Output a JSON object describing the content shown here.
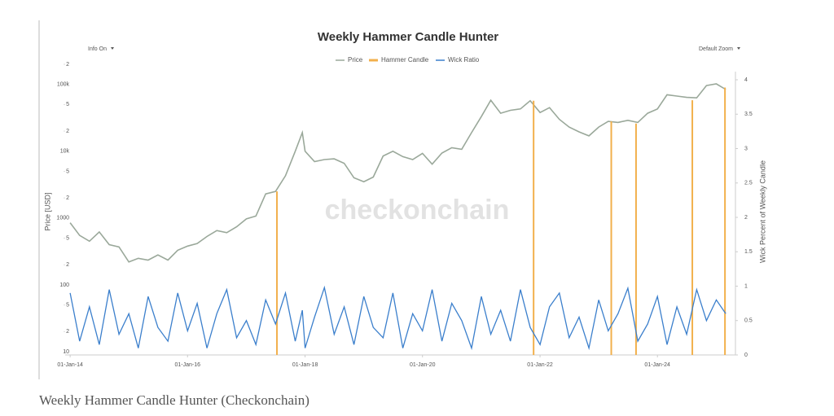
{
  "chart_data": {
    "type": "line",
    "title": "Weekly Hammer Candle Hunter",
    "caption": "Weekly Hammer Candle Hunter (Checkonchain)",
    "controls": [
      "Info On",
      "Default Zoom"
    ],
    "watermark": "checkonchain",
    "ylabel": "Price [USD]",
    "y2label": "Wick Percent of Weekly Candle",
    "log_y": true,
    "x": [
      "2014-01-01",
      "2014-03-01",
      "2014-05-01",
      "2014-07-01",
      "2014-09-01",
      "2014-11-01",
      "2015-01-01",
      "2015-03-01",
      "2015-05-01",
      "2015-07-01",
      "2015-09-01",
      "2015-11-01",
      "2016-01-01",
      "2016-03-01",
      "2016-05-01",
      "2016-07-01",
      "2016-09-01",
      "2016-11-01",
      "2017-01-01",
      "2017-03-01",
      "2017-05-01",
      "2017-07-01",
      "2017-09-01",
      "2017-11-01",
      "2017-12-15",
      "2018-01-01",
      "2018-03-01",
      "2018-05-01",
      "2018-07-01",
      "2018-09-01",
      "2018-11-01",
      "2019-01-01",
      "2019-03-01",
      "2019-05-01",
      "2019-07-01",
      "2019-09-01",
      "2019-11-01",
      "2020-01-01",
      "2020-03-01",
      "2020-05-01",
      "2020-07-01",
      "2020-09-01",
      "2020-11-01",
      "2021-01-01",
      "2021-03-01",
      "2021-05-01",
      "2021-07-01",
      "2021-09-01",
      "2021-11-01",
      "2022-01-01",
      "2022-03-01",
      "2022-05-01",
      "2022-07-01",
      "2022-09-01",
      "2022-11-01",
      "2023-01-01",
      "2023-03-01",
      "2023-05-01",
      "2023-07-01",
      "2023-09-01",
      "2023-11-01",
      "2024-01-01",
      "2024-03-01",
      "2024-05-01",
      "2024-07-01",
      "2024-09-01",
      "2024-11-01",
      "2025-01-01",
      "2025-03-01"
    ],
    "xlim": [
      "2013-12-01",
      "2025-04-15"
    ],
    "xticks": [
      {
        "value": "2014-01-01",
        "label": "01-Jan-14"
      },
      {
        "value": "2016-01-01",
        "label": "01-Jan-16"
      },
      {
        "value": "2018-01-01",
        "label": "01-Jan-18"
      },
      {
        "value": "2020-01-01",
        "label": "01-Jan-20"
      },
      {
        "value": "2022-01-01",
        "label": "01-Jan-22"
      },
      {
        "value": "2024-01-01",
        "label": "01-Jan-24"
      }
    ],
    "ylim": [
      10,
      230000
    ],
    "yticks": [
      10,
      {
        "value": 20,
        "label": "2"
      },
      {
        "value": 50,
        "label": "5"
      },
      100,
      {
        "value": 200,
        "label": "2"
      },
      {
        "value": 500,
        "label": "5"
      },
      1000,
      {
        "value": 2000,
        "label": "2"
      },
      {
        "value": 5000,
        "label": "5"
      },
      {
        "value": 10000,
        "label": "10k"
      },
      {
        "value": 20000,
        "label": "2"
      },
      {
        "value": 50000,
        "label": "5"
      },
      {
        "value": 100000,
        "label": "100k"
      },
      {
        "value": 200000,
        "label": "2"
      }
    ],
    "y2lim": [
      0,
      4
    ],
    "y2ticks": [
      0,
      0.5,
      1,
      1.5,
      2,
      2.5,
      3,
      3.5,
      4
    ],
    "series": [
      {
        "name": "Price",
        "color": "#9aa89a",
        "values": [
          850,
          550,
          450,
          620,
          400,
          370,
          220,
          250,
          235,
          280,
          235,
          330,
          380,
          415,
          530,
          650,
          605,
          740,
          970,
          1070,
          2300,
          2500,
          4300,
          10000,
          19000,
          10000,
          7000,
          7500,
          7700,
          6600,
          4000,
          3500,
          4100,
          8500,
          10000,
          8300,
          7500,
          9300,
          6400,
          9400,
          11300,
          10700,
          19000,
          33000,
          58000,
          37000,
          41000,
          43000,
          57000,
          38000,
          45000,
          30000,
          23000,
          19500,
          17000,
          23000,
          28000,
          27000,
          29000,
          27000,
          37000,
          43000,
          70000,
          67000,
          64000,
          63000,
          96000,
          102000,
          84000
        ]
      },
      {
        "name": "Hammer Candle",
        "color": "#f2b04c",
        "x": [
          "2017-07-10",
          "2021-11-22",
          "2023-03-20",
          "2023-08-21",
          "2024-08-05",
          "2025-02-24"
        ],
        "values": [
          2500,
          57000,
          28000,
          26000,
          58000,
          90000
        ]
      },
      {
        "name": "Wick Ratio",
        "color": "#3b7fcc",
        "axis": "y2",
        "values": [
          0.9,
          0.2,
          0.7,
          0.15,
          0.95,
          0.3,
          0.6,
          0.1,
          0.85,
          0.4,
          0.2,
          0.9,
          0.35,
          0.75,
          0.1,
          0.6,
          0.95,
          0.25,
          0.5,
          0.15,
          0.8,
          0.45,
          0.9,
          0.2,
          0.65,
          0.1,
          0.55,
          0.98,
          0.3,
          0.7,
          0.15,
          0.85,
          0.4,
          0.25,
          0.9,
          0.1,
          0.6,
          0.35,
          0.95,
          0.2,
          0.75,
          0.5,
          0.1,
          0.85,
          0.3,
          0.65,
          0.2,
          0.95,
          0.4,
          0.15,
          0.7,
          0.9,
          0.25,
          0.55,
          0.1,
          0.8,
          0.35,
          0.6,
          0.97,
          0.2,
          0.45,
          0.85,
          0.15,
          0.7,
          0.3,
          0.95,
          0.5,
          0.8,
          0.6
        ]
      }
    ]
  }
}
